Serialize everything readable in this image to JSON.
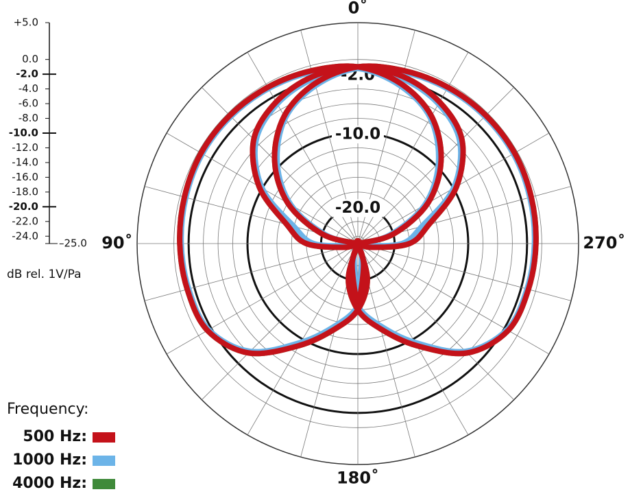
{
  "chart_data": {
    "type": "polar",
    "rlim": [
      -25,
      5
    ],
    "yticks": [
      {
        "value": 5,
        "label": "+5.0"
      },
      {
        "value": 0,
        "label": "0.0"
      },
      {
        "value": -2,
        "label": "-2.0"
      },
      {
        "value": -4,
        "label": "-4.0"
      },
      {
        "value": -6,
        "label": "-6.0"
      },
      {
        "value": -8,
        "label": "-8.0"
      },
      {
        "value": -10,
        "label": "-10.0"
      },
      {
        "value": -12,
        "label": "-12.0"
      },
      {
        "value": -14,
        "label": "-14.0"
      },
      {
        "value": -16,
        "label": "-16.0"
      },
      {
        "value": -18,
        "label": "-18.0"
      },
      {
        "value": -20,
        "label": "-20.0"
      },
      {
        "value": -22,
        "label": "-22.0"
      },
      {
        "value": -24,
        "label": "-24.0"
      },
      {
        "value": -25,
        "label": "–25.0"
      }
    ],
    "ring_labels": [
      {
        "value": -2,
        "label": "-2.0"
      },
      {
        "value": -10,
        "label": "-10.0"
      },
      {
        "value": -20,
        "label": "-20.0"
      }
    ],
    "angle_labels": [
      {
        "value": 0,
        "label": "0˚"
      },
      {
        "value": 90,
        "label": "90˚"
      },
      {
        "value": 180,
        "label": "180˚"
      },
      {
        "value": 270,
        "label": "270˚"
      }
    ],
    "unit_label": "dB rel. 1V/Pa",
    "legend_title": "Frequency:",
    "angles": [
      0,
      15,
      30,
      45,
      60,
      75,
      90,
      105,
      120,
      135,
      150,
      165,
      180,
      195,
      210,
      225,
      240,
      255,
      270,
      285,
      300,
      315,
      330,
      345
    ],
    "series": [
      {
        "name": "4000 Hz:",
        "color": "#3f8a3a",
        "values": [
          [
            -1,
            -1.5,
            -2.8,
            -5,
            -9.5,
            -15,
            -18,
            -23,
            -25,
            -25,
            -25,
            -22,
            -17,
            -22,
            -25,
            -25,
            -25,
            -23,
            -18,
            -15,
            -9.5,
            -5,
            -2.8,
            -1.5
          ],
          [
            -1,
            -0.7,
            -0.5,
            -0.4,
            -0.4,
            -0.6,
            -0.8,
            -1,
            -1.4,
            -4,
            -9,
            -13,
            -16,
            -20,
            -25,
            -25,
            -25,
            -25,
            -25,
            -20,
            -14,
            -9,
            -5,
            -2.5
          ],
          [
            -1,
            -2.5,
            -5,
            -9,
            -14,
            -20,
            -25,
            -25,
            -25,
            -25,
            -25,
            -20,
            -16,
            -13,
            -9,
            -4,
            -1.4,
            -1,
            -0.8,
            -0.6,
            -0.4,
            -0.4,
            -0.5,
            -0.7
          ]
        ]
      },
      {
        "name": "1000 Hz:",
        "color": "#6cb4e8",
        "values": [
          [
            -1.2,
            -1.8,
            -3.1,
            -5.4,
            -10,
            -16,
            -19,
            -24,
            -25,
            -25,
            -25,
            -23,
            -17.5,
            -23,
            -25,
            -25,
            -25,
            -24,
            -19,
            -16,
            -10,
            -5.4,
            -3.1,
            -1.8
          ],
          [
            -1.2,
            -0.9,
            -0.7,
            -0.6,
            -0.6,
            -0.8,
            -1,
            -1.2,
            -1.6,
            -4.3,
            -9.5,
            -13.5,
            -16.5,
            -20.5,
            -25,
            -25,
            -25,
            -25,
            -25,
            -20.5,
            -14.5,
            -9.5,
            -5.3,
            -2.8
          ],
          [
            -1.2,
            -2.8,
            -5.3,
            -9.5,
            -14.5,
            -20.5,
            -25,
            -25,
            -25,
            -25,
            -25,
            -20.5,
            -16.5,
            -13.5,
            -9.5,
            -4.3,
            -1.6,
            -1.2,
            -1,
            -0.8,
            -0.6,
            -0.6,
            -0.7,
            -0.9
          ]
        ]
      },
      {
        "name": "500 Hz:",
        "color": "#c4121a",
        "values": [
          [
            -1,
            -1.5,
            -2.8,
            -5,
            -9.5,
            -15,
            -18,
            -23,
            -25,
            -25,
            -25,
            -22,
            -17,
            -22,
            -25,
            -25,
            -25,
            -23,
            -18,
            -15,
            -9.5,
            -5,
            -2.8,
            -1.5
          ],
          [
            -1,
            -0.7,
            -0.5,
            -0.4,
            -0.4,
            -0.6,
            -0.8,
            -1,
            -1.4,
            -4,
            -9,
            -13,
            -16,
            -20,
            -25,
            -25,
            -25,
            -25,
            -25,
            -20,
            -14,
            -9,
            -5,
            -2.5
          ],
          [
            -1,
            -2.5,
            -5,
            -9,
            -14,
            -20,
            -25,
            -25,
            -25,
            -25,
            -25,
            -20,
            -16,
            -13,
            -9,
            -4,
            -1.4,
            -1,
            -0.8,
            -0.6,
            -0.4,
            -0.4,
            -0.5,
            -0.7
          ]
        ]
      }
    ]
  }
}
